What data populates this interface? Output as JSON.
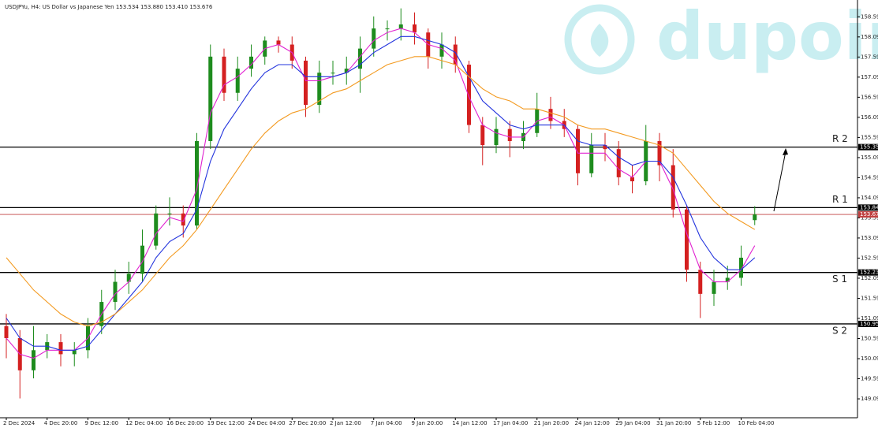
{
  "chart_data": {
    "type": "candlestick",
    "title": "USDJPYu, H4: US Dollar vs Japanese Yen 153.534 153.880 153.410 153.676",
    "watermark": "dupoin",
    "up_color": "#1e8c1e",
    "down_color": "#d42020",
    "categories": [
      "2 Dec 2024",
      null,
      null,
      "4 Dec 20:00",
      null,
      null,
      "9 Dec 12:00",
      null,
      null,
      "12 Dec 04:00",
      null,
      null,
      "16 Dec 20:00",
      null,
      null,
      "19 Dec 12:00",
      null,
      null,
      "24 Dec 04:00",
      null,
      null,
      "27 Dec 20:00",
      null,
      null,
      "2 Jan 12:00",
      null,
      null,
      "7 Jan 04:00",
      null,
      null,
      "9 Jan 20:00",
      null,
      null,
      "14 Jan 12:00",
      null,
      null,
      "17 Jan 04:00",
      null,
      null,
      "21 Jan 20:00",
      null,
      null,
      "24 Jan 12:00",
      null,
      null,
      "29 Jan 04:00",
      null,
      null,
      "31 Jan 20:00",
      null,
      null,
      "5 Feb 12:00",
      null,
      null,
      "10 Feb 04:00",
      null
    ],
    "open": [
      150.9,
      150.6,
      149.8,
      150.3,
      150.5,
      150.2,
      150.3,
      150.9,
      151.5,
      152.0,
      152.2,
      152.9,
      153.7,
      153.7,
      153.4,
      155.5,
      157.6,
      156.7,
      157.3,
      157.6,
      158.0,
      157.9,
      157.5,
      156.4,
      157.2,
      157.2,
      157.3,
      157.8,
      158.3,
      158.3,
      158.4,
      158.2,
      157.6,
      157.9,
      157.4,
      155.9,
      155.4,
      155.8,
      155.5,
      155.7,
      156.3,
      156.0,
      155.8,
      154.7,
      155.4,
      155.3,
      154.6,
      154.5,
      155.5,
      154.9,
      153.8,
      152.3,
      151.7,
      152.0,
      152.1,
      153.534
    ],
    "high": [
      151.2,
      150.8,
      150.9,
      150.7,
      150.7,
      150.5,
      151.1,
      151.8,
      152.3,
      152.5,
      153.3,
      153.9,
      154.1,
      153.9,
      155.7,
      157.9,
      157.8,
      157.6,
      157.9,
      158.1,
      158.1,
      158.1,
      157.6,
      157.5,
      157.5,
      157.6,
      158.1,
      158.6,
      158.5,
      158.8,
      158.7,
      158.3,
      158.2,
      158.1,
      157.5,
      156.1,
      156.1,
      156.0,
      156.0,
      156.7,
      156.6,
      156.3,
      155.9,
      155.7,
      155.7,
      155.5,
      154.9,
      155.9,
      155.7,
      155.3,
      153.9,
      152.5,
      152.3,
      152.4,
      152.9,
      153.88
    ],
    "low": [
      150.1,
      149.1,
      149.6,
      150.1,
      149.9,
      149.9,
      150.1,
      150.7,
      151.3,
      151.7,
      152.0,
      152.8,
      153.4,
      153.1,
      153.3,
      155.3,
      156.5,
      156.5,
      157.1,
      157.4,
      157.7,
      157.3,
      156.1,
      156.2,
      156.9,
      156.9,
      156.7,
      157.6,
      158.0,
      158.0,
      157.9,
      157.3,
      157.3,
      157.2,
      155.7,
      154.9,
      155.2,
      155.1,
      155.3,
      155.6,
      155.8,
      155.6,
      154.4,
      154.6,
      155.0,
      154.4,
      154.2,
      154.4,
      154.5,
      153.6,
      152.0,
      151.1,
      151.4,
      151.8,
      151.9,
      153.41
    ],
    "close": [
      150.6,
      149.8,
      150.3,
      150.5,
      150.2,
      150.3,
      150.9,
      151.5,
      152.0,
      152.2,
      152.9,
      153.7,
      153.7,
      153.4,
      155.5,
      157.6,
      156.7,
      157.3,
      157.6,
      158.0,
      157.9,
      157.5,
      156.4,
      157.2,
      157.2,
      157.3,
      157.8,
      158.3,
      158.3,
      158.4,
      158.2,
      157.6,
      157.9,
      157.4,
      155.9,
      155.4,
      155.8,
      155.5,
      155.7,
      156.3,
      156.0,
      155.8,
      154.7,
      155.4,
      155.3,
      154.6,
      154.5,
      155.5,
      154.9,
      153.8,
      152.3,
      151.7,
      152.0,
      152.1,
      152.6,
      153.676
    ],
    "series": [
      {
        "color": "#e020d0",
        "values": [
          150.6,
          150.2,
          150.1,
          150.3,
          150.3,
          150.3,
          150.6,
          151.2,
          151.7,
          152.0,
          152.5,
          153.2,
          153.6,
          153.5,
          154.3,
          156.2,
          156.9,
          157.1,
          157.4,
          157.8,
          157.9,
          157.7,
          157.0,
          157.0,
          157.1,
          157.2,
          157.6,
          158.0,
          158.2,
          158.3,
          158.2,
          157.9,
          157.8,
          157.5,
          156.6,
          155.9,
          155.7,
          155.6,
          155.6,
          156.0,
          156.1,
          155.9,
          155.2,
          155.2,
          155.2,
          154.8,
          154.6,
          155.0,
          155.0,
          154.3,
          153.2,
          152.3,
          152.0,
          152.0,
          152.3,
          152.9
        ]
      },
      {
        "color": "#2233dd",
        "values": [
          151.1,
          150.6,
          150.4,
          150.4,
          150.3,
          150.3,
          150.4,
          150.8,
          151.2,
          151.6,
          152.0,
          152.6,
          153.0,
          153.2,
          153.8,
          155.0,
          155.8,
          156.3,
          156.8,
          157.2,
          157.4,
          157.4,
          157.1,
          157.1,
          157.1,
          157.2,
          157.4,
          157.7,
          157.9,
          158.1,
          158.1,
          158.0,
          157.9,
          157.7,
          157.1,
          156.5,
          156.2,
          155.9,
          155.8,
          155.9,
          155.9,
          155.9,
          155.5,
          155.4,
          155.4,
          155.1,
          154.9,
          155.0,
          155.0,
          154.6,
          153.9,
          153.1,
          152.6,
          152.3,
          152.3,
          152.6
        ]
      },
      {
        "color": "#f39a20",
        "values": [
          152.6,
          152.2,
          151.8,
          151.5,
          151.2,
          151.0,
          150.9,
          151.0,
          151.2,
          151.5,
          151.8,
          152.2,
          152.6,
          152.9,
          153.3,
          153.8,
          154.3,
          154.8,
          155.3,
          155.7,
          156.0,
          156.2,
          156.3,
          156.5,
          156.7,
          156.8,
          157.0,
          157.2,
          157.4,
          157.5,
          157.6,
          157.6,
          157.5,
          157.4,
          157.1,
          156.8,
          156.6,
          156.5,
          156.3,
          156.3,
          156.2,
          156.1,
          155.9,
          155.8,
          155.8,
          155.7,
          155.6,
          155.5,
          155.4,
          155.2,
          154.8,
          154.4,
          154.0,
          153.7,
          153.5,
          153.3
        ]
      }
    ],
    "levels": [
      {
        "name": "R 2",
        "value": 155.35,
        "label": "155.350"
      },
      {
        "name": "R 1",
        "value": 153.846,
        "label": "153.846"
      },
      {
        "name": "S 1",
        "value": 152.233,
        "label": "152.233"
      },
      {
        "name": "S 2",
        "value": 150.954,
        "label": "150.954"
      }
    ],
    "last_price": {
      "value": 153.676,
      "label": "153.676",
      "color": "#c04040"
    },
    "ylim": [
      148.62,
      158.91
    ],
    "yticks": [
      {
        "value": 149.09,
        "label": "149.090"
      },
      {
        "value": 149.59,
        "label": "149.590"
      },
      {
        "value": 150.09,
        "label": "150.090"
      },
      {
        "value": 150.59,
        "label": "150.590"
      },
      {
        "value": 151.09,
        "label": "151.090"
      },
      {
        "value": 151.59,
        "label": "151.590"
      },
      {
        "value": 152.09,
        "label": "152.090"
      },
      {
        "value": 152.59,
        "label": "152.590"
      },
      {
        "value": 153.09,
        "label": "153.090"
      },
      {
        "value": 153.59,
        "label": "153.590"
      },
      {
        "value": 154.09,
        "label": "154.090"
      },
      {
        "value": 154.59,
        "label": "154.590"
      },
      {
        "value": 155.09,
        "label": "155.090"
      },
      {
        "value": 155.59,
        "label": "155.590"
      },
      {
        "value": 156.09,
        "label": "156.090"
      },
      {
        "value": 156.59,
        "label": "156.590"
      },
      {
        "value": 157.09,
        "label": "157.090"
      },
      {
        "value": 157.59,
        "label": "157.590"
      },
      {
        "value": 158.09,
        "label": "158.090"
      },
      {
        "value": 158.59,
        "label": "158.590"
      }
    ]
  }
}
